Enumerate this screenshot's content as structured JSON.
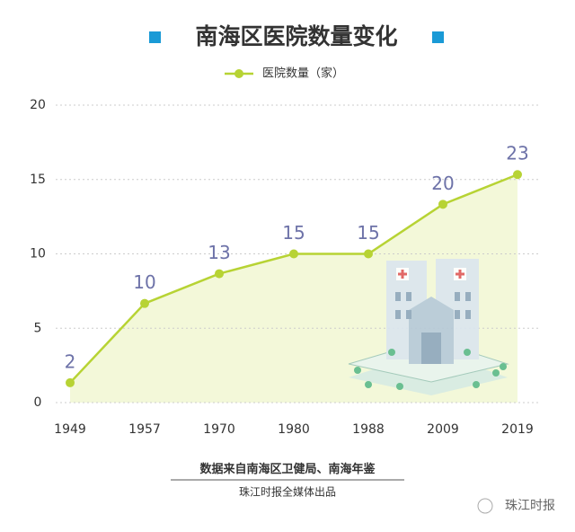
{
  "chart_data": {
    "type": "area-line",
    "title": "南海区医院数量变化",
    "categories": [
      "1949",
      "1957",
      "1970",
      "1980",
      "1988",
      "2009",
      "2019"
    ],
    "series": [
      {
        "name": "医院数量（家）",
        "color": "#b7d334",
        "axis": "y2",
        "values": [
          2,
          10,
          13,
          15,
          15,
          20,
          23
        ]
      }
    ],
    "ylim": [
      0,
      20
    ],
    "yticks": [
      0,
      5,
      10,
      15,
      20
    ],
    "y2lim": [
      0,
      30
    ],
    "grid": true,
    "source": "数据来自南海区卫健局、南海年鉴",
    "credit": "珠江时报全媒体出品",
    "watermark": "珠江时报"
  }
}
